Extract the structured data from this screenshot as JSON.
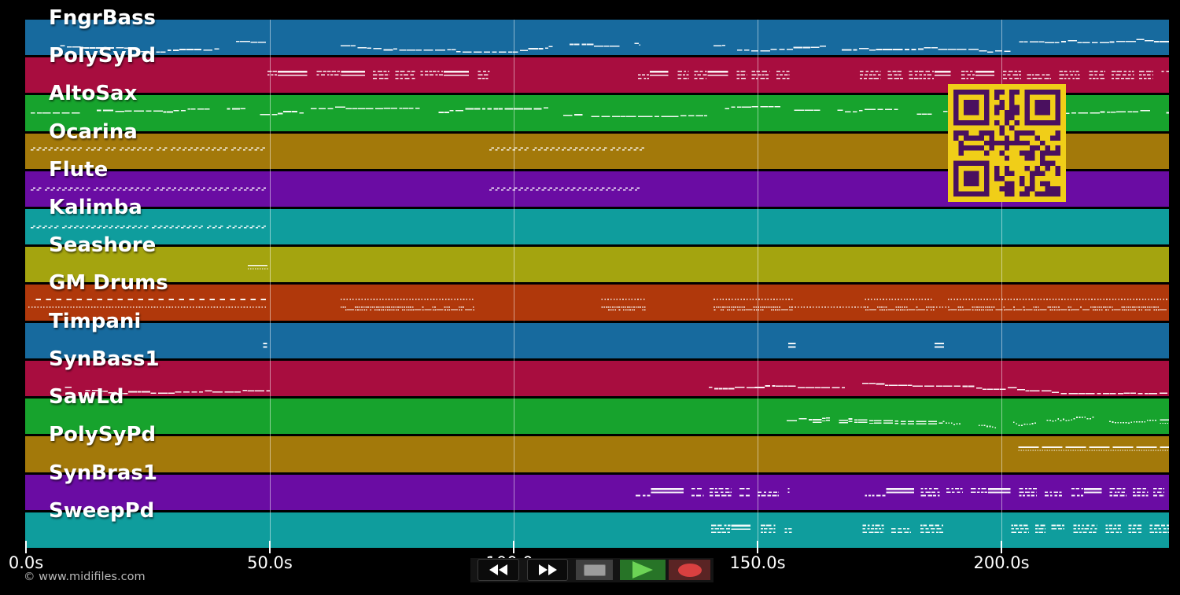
{
  "watermark": "© www.midifiles.com",
  "timeline": {
    "ticks": [
      {
        "label": "0.0s",
        "s": 0
      },
      {
        "label": "50.0s",
        "s": 50
      },
      {
        "label": "100.0s",
        "s": 100
      },
      {
        "label": "150.0s",
        "s": 150
      },
      {
        "label": "200.0s",
        "s": 200
      }
    ],
    "duration_s": 234.4,
    "gridline_seconds": [
      50,
      100,
      150,
      200
    ]
  },
  "palette": {
    "blue": "#176a9e",
    "crimson": "#a80d3f",
    "green": "#17a32d",
    "gold": "#a3790a",
    "purple": "#6a0ca3",
    "teal": "#0f9d9d",
    "olive": "#a4a40f",
    "rust": "#b0380b",
    "note_color": "#ffffff",
    "grid_color": "rgba(255,255,255,0.5)",
    "background": "#000000"
  },
  "tracks": [
    {
      "name": "FngrBass",
      "color": "#176a9e",
      "notes": [
        {
          "style": "wave",
          "row": 0.72,
          "segs": [
            [
              7,
              49.5
            ],
            [
              64.5,
              126
            ],
            [
              141,
              234.4
            ]
          ]
        }
      ]
    },
    {
      "name": "PolySyPd",
      "color": "#a80d3f",
      "notes": [
        {
          "style": "cluster",
          "row": 0.47,
          "segs": [
            [
              49.5,
              95.5
            ],
            [
              125.5,
              156.5
            ],
            [
              171,
              234.4
            ]
          ]
        }
      ]
    },
    {
      "name": "AltoSax",
      "color": "#17a32d",
      "notes": [
        {
          "style": "wave",
          "row": 0.48,
          "segs": [
            [
              1,
              234.4
            ]
          ]
        }
      ]
    },
    {
      "name": "Ocarina",
      "color": "#a3790a",
      "notes": [
        {
          "style": "zigzag",
          "row": 0.4,
          "segs": [
            [
              1,
              49.5
            ],
            [
              95,
              126.5
            ]
          ]
        }
      ]
    },
    {
      "name": "Flute",
      "color": "#6a0ca3",
      "notes": [
        {
          "style": "zigzag",
          "row": 0.46,
          "segs": [
            [
              1,
              49.5
            ],
            [
              95,
              126.5
            ]
          ]
        }
      ]
    },
    {
      "name": "Kalimba",
      "color": "#0f9d9d",
      "notes": [
        {
          "style": "zigzag",
          "row": 0.46,
          "segs": [
            [
              1,
              49.5
            ]
          ]
        }
      ]
    },
    {
      "name": "Seashore",
      "color": "#a4a40f",
      "notes": [
        {
          "style": "lines2",
          "row": 0.5,
          "segs": [
            [
              45.5,
              49.5
            ]
          ]
        }
      ]
    },
    {
      "name": "GM Drums",
      "color": "#b0380b",
      "notes": [
        {
          "style": "dash-row",
          "row": 0.39,
          "segs": [
            [
              2,
              49.5
            ]
          ]
        },
        {
          "style": "dot-row",
          "row": 0.39,
          "segs": [
            [
              64.5,
              92
            ],
            [
              118,
              127
            ],
            [
              141,
              157
            ],
            [
              172,
              186
            ],
            [
              189,
              234
            ]
          ]
        },
        {
          "style": "dot-row",
          "row": 0.61,
          "segs": [
            [
              0.5,
              49.5
            ],
            [
              157,
              172
            ],
            [
              186,
              189
            ]
          ]
        },
        {
          "style": "dense-row",
          "row": 0.61,
          "segs": [
            [
              64.5,
              92
            ],
            [
              118,
              127
            ],
            [
              141,
              157
            ],
            [
              172,
              186
            ],
            [
              189,
              234
            ]
          ]
        }
      ]
    },
    {
      "name": "Timpani",
      "color": "#176a9e",
      "notes": [
        {
          "style": "equals",
          "row": 0.62,
          "segs": [
            [
              48.6,
              49.4
            ],
            [
              156.3,
              157.8
            ],
            [
              186.3,
              188.2
            ]
          ]
        }
      ]
    },
    {
      "name": "SynBass1",
      "color": "#a80d3f",
      "notes": [
        {
          "style": "wave",
          "row": 0.73,
          "segs": [
            [
              8,
              50
            ],
            [
              140,
              234.4
            ]
          ]
        }
      ]
    },
    {
      "name": "SawLd",
      "color": "#17a32d",
      "notes": [
        {
          "style": "wave2",
          "row": 0.6,
          "segs": [
            [
              156,
              188
            ]
          ]
        },
        {
          "style": "dots-wave",
          "row": 0.63,
          "segs": [
            [
              188,
              232
            ]
          ]
        },
        {
          "style": "lines2",
          "row": 0.58,
          "segs": [
            [
              232.5,
              235
            ]
          ]
        }
      ]
    },
    {
      "name": "PolySyPd",
      "color": "#a3790a",
      "notes": [
        {
          "style": "lines2",
          "row": 0.28,
          "segs": [
            [
              203.5,
              235
            ]
          ]
        }
      ]
    },
    {
      "name": "SynBras1",
      "color": "#6a0ca3",
      "notes": [
        {
          "style": "cluster",
          "row": 0.48,
          "segs": [
            [
              125,
              156.5
            ],
            [
              172,
              234.4
            ]
          ]
        }
      ]
    },
    {
      "name": "SweepPd",
      "color": "#0f9d9d",
      "notes": [
        {
          "style": "cluster",
          "row": 0.45,
          "segs": [
            [
              140.5,
              157
            ],
            [
              171.5,
              189
            ],
            [
              202,
              234.4
            ]
          ]
        }
      ]
    }
  ],
  "qr": {
    "modules": 21,
    "bg": "#f0ce18",
    "fg": "#4a105f"
  },
  "transport": {
    "buttons": [
      {
        "name": "rewind"
      },
      {
        "name": "fast-forward"
      },
      {
        "name": "stop"
      },
      {
        "name": "play"
      },
      {
        "name": "record"
      }
    ]
  }
}
